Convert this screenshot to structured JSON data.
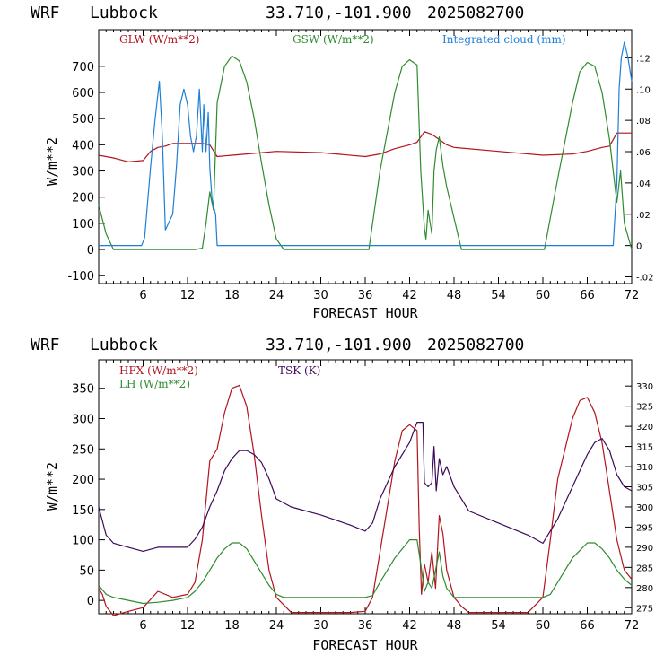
{
  "top_title": {
    "model": "WRF",
    "station": "Lubbock",
    "coords": "33.710,-101.900",
    "date": "2025082700"
  },
  "bottom_title": {
    "model": "WRF",
    "station": "Lubbock",
    "coords": "33.710,-101.900",
    "date": "2025082700"
  },
  "colors": {
    "red": "#b2141e",
    "green": "#2e8b2e",
    "blue": "#1e7fd6",
    "purple": "#3c0a5a"
  },
  "chart_data": [
    {
      "type": "line",
      "xlabel": "FORECAST HOUR",
      "ylabel": "W/m**2",
      "xlim": [
        0,
        72
      ],
      "ylim": [
        -130,
        840
      ],
      "y2lim": [
        -0.0243,
        0.138
      ],
      "xticks": [
        6,
        12,
        18,
        24,
        30,
        36,
        42,
        48,
        54,
        60,
        66,
        72
      ],
      "yticks": [
        -100,
        0,
        100,
        200,
        300,
        400,
        500,
        600,
        700
      ],
      "y2ticks": [
        -0.02,
        0,
        0.02,
        0.04,
        0.06,
        0.08,
        0.1,
        0.12
      ],
      "y2ticklabels": [
        "-.02",
        "0",
        ".02",
        ".04",
        ".06",
        ".08",
        ".10",
        ".12"
      ],
      "series": [
        {
          "name": "GLW (W/m**2)",
          "color": "red",
          "axis": "left",
          "x": [
            0,
            2,
            4,
            6,
            7,
            8,
            9,
            10,
            12,
            14,
            15,
            16,
            18,
            20,
            24,
            30,
            36,
            38,
            40,
            42,
            43,
            44,
            45,
            46,
            47,
            48,
            54,
            60,
            64,
            66,
            68,
            69,
            70,
            71,
            72
          ],
          "y": [
            360,
            350,
            335,
            340,
            375,
            390,
            395,
            405,
            405,
            405,
            400,
            355,
            360,
            365,
            375,
            370,
            355,
            365,
            385,
            400,
            410,
            450,
            440,
            420,
            400,
            390,
            375,
            360,
            365,
            375,
            390,
            395,
            445,
            445,
            445
          ]
        },
        {
          "name": "GSW (W/m**2)",
          "color": "green",
          "axis": "left",
          "x": [
            0,
            1,
            2,
            12,
            13,
            14,
            14.5,
            15,
            15.5,
            16,
            17,
            18,
            19,
            20,
            21,
            22,
            23,
            24,
            25,
            36.5,
            38,
            40,
            41,
            42,
            43,
            43.5,
            44,
            44.2,
            44.5,
            45,
            45.3,
            45.6,
            46,
            46.5,
            47,
            48,
            49,
            60.2,
            62,
            64,
            65,
            66,
            67,
            68,
            69,
            70,
            70.5,
            71,
            72
          ],
          "y": [
            170,
            60,
            0,
            0,
            0,
            5,
            100,
            220,
            150,
            560,
            700,
            740,
            720,
            640,
            500,
            330,
            170,
            40,
            0,
            0,
            300,
            600,
            700,
            725,
            705,
            300,
            80,
            40,
            150,
            60,
            300,
            380,
            430,
            320,
            240,
            120,
            0,
            0,
            270,
            560,
            680,
            715,
            700,
            600,
            420,
            180,
            300,
            100,
            0
          ]
        },
        {
          "name": "Integrated cloud (mm)",
          "color": "blue",
          "axis": "right",
          "x": [
            0,
            5.8,
            6.2,
            7,
            7.6,
            8.2,
            8.6,
            9,
            9.5,
            10,
            10.5,
            11,
            11.5,
            12,
            12.4,
            12.8,
            13.2,
            13.6,
            14,
            14.2,
            14.5,
            14.8,
            15,
            15.3,
            15.5,
            15.8,
            16,
            50,
            69.5,
            70,
            70.3,
            70.6,
            71,
            71.5,
            72
          ],
          "y": [
            0,
            0,
            0.005,
            0.05,
            0.08,
            0.105,
            0.07,
            0.01,
            0.015,
            0.02,
            0.05,
            0.09,
            0.1,
            0.09,
            0.07,
            0.06,
            0.07,
            0.1,
            0.06,
            0.09,
            0.06,
            0.085,
            0.05,
            0.03,
            0.025,
            0.02,
            0,
            0,
            0,
            0.04,
            0.1,
            0.12,
            0.13,
            0.12,
            0.105
          ]
        }
      ]
    },
    {
      "type": "line",
      "xlabel": "FORECAST HOUR",
      "ylabel": "W/m**2",
      "xlim": [
        0,
        72
      ],
      "ylim": [
        -22,
        397
      ],
      "y2lim": [
        273.5,
        336.5
      ],
      "xticks": [
        6,
        12,
        18,
        24,
        30,
        36,
        42,
        48,
        54,
        60,
        66,
        72
      ],
      "yticks": [
        0,
        50,
        100,
        150,
        200,
        250,
        300,
        350
      ],
      "y2ticks": [
        275,
        280,
        285,
        290,
        295,
        300,
        305,
        310,
        315,
        320,
        325,
        330
      ],
      "series": [
        {
          "name": "HFX (W/m**2)",
          "color": "red",
          "axis": "left",
          "x": [
            0,
            0.5,
            1,
            2,
            4,
            6,
            8,
            10,
            12,
            13,
            14,
            15,
            16,
            17,
            18,
            19,
            20,
            21,
            22,
            23,
            24,
            26,
            30,
            34,
            36,
            37,
            38,
            40,
            41,
            42,
            43,
            43.3,
            43.6,
            44,
            44.5,
            45,
            45.5,
            46,
            46.5,
            47,
            48,
            49,
            50,
            54,
            58,
            60,
            61,
            62,
            64,
            65,
            66,
            67,
            68,
            69,
            70,
            71,
            72
          ],
          "y": [
            20,
            10,
            -10,
            -25,
            -18,
            -12,
            15,
            5,
            10,
            30,
            100,
            230,
            250,
            310,
            350,
            355,
            320,
            240,
            140,
            50,
            5,
            -20,
            -20,
            -20,
            -18,
            5,
            80,
            230,
            280,
            290,
            280,
            120,
            10,
            60,
            30,
            80,
            20,
            140,
            110,
            50,
            5,
            -10,
            -20,
            -20,
            -20,
            5,
            100,
            200,
            300,
            330,
            335,
            310,
            260,
            180,
            100,
            50,
            35
          ]
        },
        {
          "name": "LH (W/m**2)",
          "color": "green",
          "axis": "left",
          "x": [
            0,
            1,
            2,
            4,
            6,
            8,
            10,
            12,
            13,
            14,
            15,
            16,
            17,
            18,
            19,
            20,
            21,
            22,
            23,
            24,
            25,
            30,
            36,
            37,
            38,
            40,
            42,
            43,
            43.5,
            44,
            44.5,
            45,
            45.5,
            46,
            46.5,
            47,
            48,
            50,
            54,
            60,
            61,
            62,
            64,
            66,
            67,
            68,
            69,
            70,
            71,
            72
          ],
          "y": [
            25,
            10,
            5,
            0,
            -5,
            -3,
            0,
            5,
            15,
            30,
            50,
            70,
            85,
            95,
            95,
            85,
            65,
            45,
            25,
            10,
            5,
            5,
            5,
            8,
            30,
            70,
            100,
            100,
            60,
            15,
            30,
            20,
            50,
            80,
            40,
            20,
            5,
            5,
            5,
            5,
            10,
            30,
            70,
            95,
            95,
            85,
            70,
            50,
            35,
            25
          ]
        },
        {
          "name": "TSK (K)",
          "color": "purple",
          "axis": "right",
          "x": [
            0,
            1,
            2,
            4,
            6,
            8,
            10,
            12,
            13,
            14,
            15,
            16,
            17,
            18,
            19,
            20,
            21,
            22,
            23,
            24,
            26,
            30,
            34,
            36,
            37,
            38,
            40,
            42,
            43,
            43.8,
            44,
            44.5,
            45,
            45.3,
            45.6,
            46,
            46.5,
            47,
            48,
            50,
            54,
            58,
            60,
            62,
            64,
            66,
            67,
            68,
            69,
            70,
            71,
            72
          ],
          "y": [
            300,
            293,
            291,
            290,
            289,
            290,
            290,
            290,
            292,
            295,
            300,
            304,
            309,
            312,
            314,
            314,
            313,
            311,
            307,
            302,
            300,
            298,
            295.5,
            294,
            296,
            302,
            310,
            316,
            321,
            321,
            306,
            305,
            306,
            315,
            304,
            312,
            308,
            310,
            305,
            299,
            296,
            293,
            291,
            297,
            305,
            313,
            316,
            317,
            314,
            308,
            305,
            304
          ]
        }
      ]
    }
  ]
}
